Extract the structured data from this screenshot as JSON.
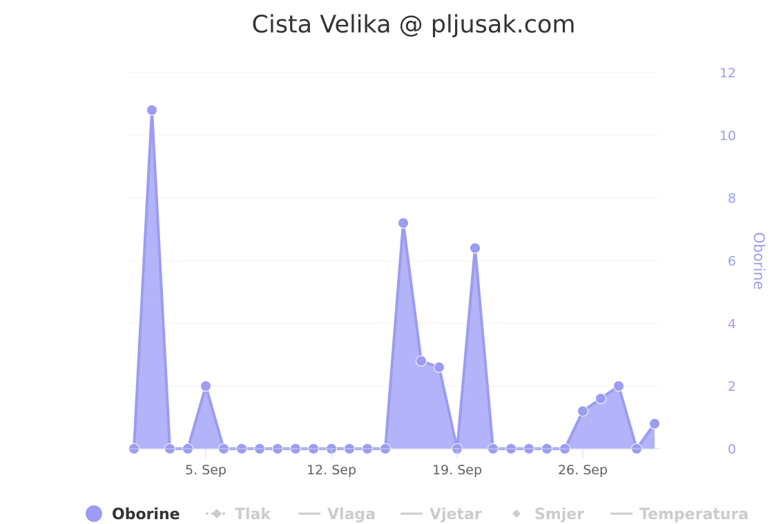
{
  "chart_data": {
    "type": "area",
    "title": "Cista Velika @ pljusak.com",
    "ylabel": "Oborine",
    "ylim": [
      0,
      12
    ],
    "yticks": [
      0,
      2,
      4,
      6,
      8,
      10,
      12
    ],
    "x_tick_labels": [
      "5. Sep",
      "12. Sep",
      "19. Sep",
      "26. Sep"
    ],
    "x_tick_days": [
      5,
      12,
      19,
      26
    ],
    "x_range_days": [
      0.5,
      30.5
    ],
    "grid": true,
    "legend_placement": "bottom",
    "series": [
      {
        "name": "Oborine",
        "color": "#9c9cf2",
        "fill_color": "#b3b3f9",
        "x_days": [
          1,
          2,
          3,
          4,
          5,
          6,
          7,
          8,
          9,
          10,
          11,
          12,
          13,
          14,
          15,
          16,
          17,
          18,
          19,
          20,
          21,
          22,
          23,
          24,
          25,
          26,
          27,
          28,
          29,
          30
        ],
        "values": [
          0,
          10.8,
          0,
          0,
          2.0,
          0,
          0,
          0,
          0,
          0,
          0,
          0,
          0,
          0,
          0,
          7.2,
          2.8,
          2.6,
          0,
          6.4,
          0,
          0,
          0,
          0,
          0,
          1.2,
          1.6,
          2.0,
          0,
          0.8
        ]
      }
    ],
    "legend": [
      {
        "name": "Oborine",
        "symbol": "circle",
        "active": true
      },
      {
        "name": "Tlak",
        "symbol": "line-diamond",
        "active": false
      },
      {
        "name": "Vlaga",
        "symbol": "line",
        "active": false
      },
      {
        "name": "Vjetar",
        "symbol": "line",
        "active": false
      },
      {
        "name": "Smjer",
        "symbol": "diamond",
        "active": false
      },
      {
        "name": "Temperatura",
        "symbol": "line",
        "active": false
      }
    ],
    "colors": {
      "active_legend_text": "#333333",
      "inactive_legend": "#cccccc",
      "gridline": "#f2f2f2",
      "axis_line": "#ccd6eb"
    }
  }
}
